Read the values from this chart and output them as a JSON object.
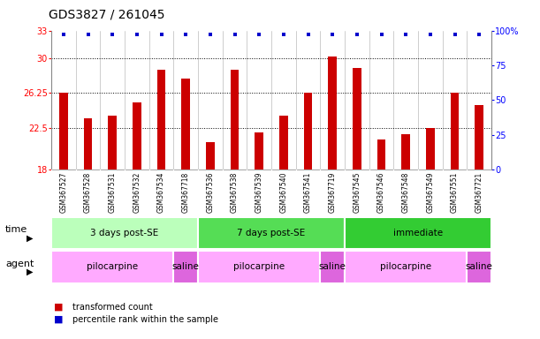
{
  "title": "GDS3827 / 261045",
  "samples": [
    "GSM367527",
    "GSM367528",
    "GSM367531",
    "GSM367532",
    "GSM367534",
    "GSM367718",
    "GSM367536",
    "GSM367538",
    "GSM367539",
    "GSM367540",
    "GSM367541",
    "GSM367719",
    "GSM367545",
    "GSM367546",
    "GSM367548",
    "GSM367549",
    "GSM367551",
    "GSM367721"
  ],
  "bar_values": [
    26.25,
    23.5,
    23.8,
    25.2,
    28.8,
    27.8,
    21.0,
    28.8,
    22.0,
    23.8,
    26.25,
    30.2,
    29.0,
    21.2,
    21.8,
    22.5,
    26.25,
    25.0
  ],
  "bar_color": "#cc0000",
  "dot_color": "#0000cc",
  "ylim_left": [
    18,
    33
  ],
  "ylim_right": [
    0,
    100
  ],
  "yticks_left": [
    18,
    22.5,
    26.25,
    30,
    33
  ],
  "ytick_labels_left": [
    "18",
    "22.5",
    "26.25",
    "30",
    "33"
  ],
  "yticks_right": [
    0,
    25,
    50,
    75,
    100
  ],
  "ytick_labels_right": [
    "0",
    "25",
    "50",
    "75",
    "100%"
  ],
  "hlines": [
    22.5,
    26.25,
    30
  ],
  "time_groups": [
    {
      "label": "3 days post-SE",
      "start": 0,
      "end": 5,
      "color": "#bbffbb"
    },
    {
      "label": "7 days post-SE",
      "start": 6,
      "end": 11,
      "color": "#55dd55"
    },
    {
      "label": "immediate",
      "start": 12,
      "end": 17,
      "color": "#33cc33"
    }
  ],
  "agent_groups": [
    {
      "label": "pilocarpine",
      "start": 0,
      "end": 4,
      "color": "#ffaaff"
    },
    {
      "label": "saline",
      "start": 5,
      "end": 5,
      "color": "#dd66dd"
    },
    {
      "label": "pilocarpine",
      "start": 6,
      "end": 10,
      "color": "#ffaaff"
    },
    {
      "label": "saline",
      "start": 11,
      "end": 11,
      "color": "#dd66dd"
    },
    {
      "label": "pilocarpine",
      "start": 12,
      "end": 16,
      "color": "#ffaaff"
    },
    {
      "label": "saline",
      "start": 17,
      "end": 17,
      "color": "#dd66dd"
    }
  ],
  "time_label": "time",
  "agent_label": "agent",
  "legend_items": [
    {
      "color": "#cc0000",
      "label": "transformed count"
    },
    {
      "color": "#0000cc",
      "label": "percentile rank within the sample"
    }
  ],
  "background_color": "#ffffff",
  "title_fontsize": 10,
  "tick_fontsize": 7,
  "sample_fontsize": 5.5,
  "row_fontsize": 7.5,
  "legend_fontsize": 7
}
